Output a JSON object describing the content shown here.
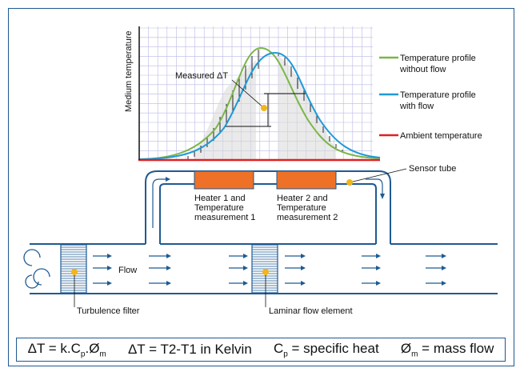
{
  "graph": {
    "ylabel": "Medium temperature",
    "measured_label": "Measured ΔT"
  },
  "legend": {
    "items": [
      {
        "line1": "Temperature profile",
        "line2": "without flow",
        "color": "#7ab648"
      },
      {
        "line1": "Temperature profile",
        "line2": "with flow",
        "color": "#1e9ad6"
      },
      {
        "line1": "Ambient temperature",
        "line2": "",
        "color": "#e02020"
      }
    ]
  },
  "labels": {
    "sensor_tube": "Sensor tube",
    "heater1_line1": "Heater 1 and",
    "heater1_line2": "Temperature",
    "heater1_line3": "measurement 1",
    "heater2_line1": "Heater 2 and",
    "heater2_line2": "Temperature",
    "heater2_line3": "measurement 2",
    "flow": "Flow",
    "turbulence_filter": "Turbulence filter",
    "laminar_flow_element": "Laminar flow element"
  },
  "formulas": {
    "f1_a": "ΔT = k.C",
    "f1_sub1": "p",
    "f1_b": ".Ø",
    "f1_sub2": "m",
    "f2": "ΔT = T2-T1 in Kelvin",
    "f3_a": "C",
    "f3_sub": "p",
    "f3_b": " = specific heat",
    "f4_a": "Ø",
    "f4_sub": "m",
    "f4_b": " = mass flow"
  },
  "colors": {
    "frame": "#1e5a92",
    "heater": "#ee7127",
    "marker": "#f2b51b",
    "pipe": "#1e5a92"
  }
}
